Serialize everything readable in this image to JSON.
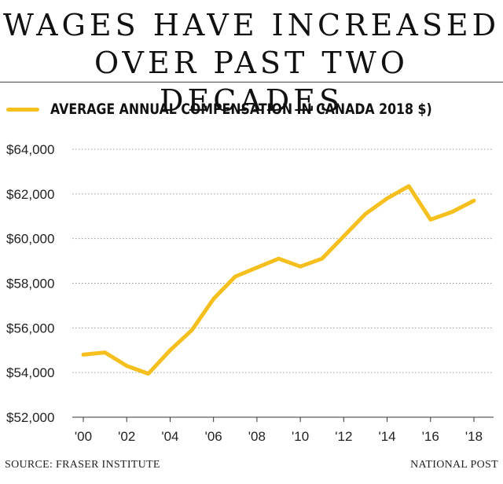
{
  "header": {
    "title_line1": "WAGES HAVE INCREASED",
    "title_line2": "OVER PAST TWO DECADES"
  },
  "footer": {
    "source": "SOURCE: FRASER INSTITUTE",
    "credit": "NATIONAL POST"
  },
  "colors": {
    "line": "#F5BF1E",
    "grid": "#9a9a9a",
    "axis": "#333333"
  },
  "chart_data": {
    "type": "line",
    "title": "",
    "xlabel": "",
    "ylabel": "",
    "x": [
      2000,
      2001,
      2002,
      2003,
      2004,
      2005,
      2006,
      2007,
      2008,
      2009,
      2010,
      2011,
      2012,
      2013,
      2014,
      2015,
      2016,
      2017,
      2018
    ],
    "series": [
      {
        "name": "AVERAGE ANNUAL COMPENSATION IN CANADA 2018 $)",
        "values": [
          54800,
          54900,
          54300,
          53950,
          55000,
          55900,
          57300,
          58300,
          58700,
          59100,
          58750,
          59100,
          60100,
          61100,
          61800,
          62350,
          60850,
          61200,
          61700
        ]
      }
    ],
    "ylim": [
      52000,
      64000
    ],
    "xlim": [
      2000,
      2018
    ],
    "y_ticks": [
      "$52,000",
      "$54,000",
      "$56,000",
      "$58,000",
      "$60,000",
      "$62,000",
      "$64,000"
    ],
    "y_tick_values": [
      52000,
      54000,
      56000,
      58000,
      60000,
      62000,
      64000
    ],
    "x_ticks": [
      "'00",
      "'02",
      "'04",
      "'06",
      "'08",
      "'10",
      "'12",
      "'14",
      "'16",
      "'18"
    ],
    "x_tick_values": [
      2000,
      2002,
      2004,
      2006,
      2008,
      2010,
      2012,
      2014,
      2016,
      2018
    ],
    "grid": true,
    "grid_style": "dotted",
    "legend_position": "top-left"
  }
}
